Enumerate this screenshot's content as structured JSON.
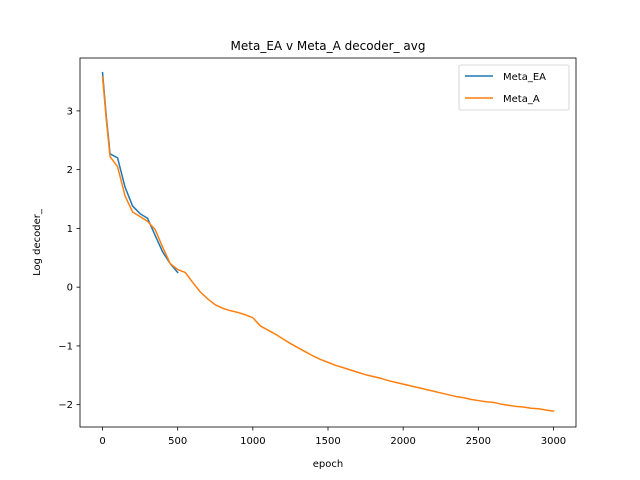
{
  "chart_data": {
    "type": "line",
    "title": "Meta_EA v Meta_A decoder_ avg",
    "xlabel": "epoch",
    "ylabel": "Log decoder_",
    "xlim": [
      -150,
      3150
    ],
    "ylim": [
      -2.38,
      3.9
    ],
    "xticks": [
      0,
      500,
      1000,
      1500,
      2000,
      2500,
      3000
    ],
    "yticks": [
      -2,
      -1,
      0,
      1,
      2,
      3
    ],
    "ytick_labels": [
      "−2",
      "−1",
      "0",
      "1",
      "2",
      "3"
    ],
    "grid": false,
    "legend": "top-right",
    "colors": {
      "Meta_EA": "#1f77b4",
      "Meta_A": "#ff7f0e"
    },
    "series": [
      {
        "name": "Meta_EA",
        "color": "#1f77b4",
        "x": [
          0,
          25,
          50,
          100,
          150,
          200,
          250,
          300,
          350,
          400,
          450,
          500
        ],
        "y": [
          3.65,
          2.9,
          2.27,
          2.2,
          1.7,
          1.38,
          1.25,
          1.17,
          0.88,
          0.6,
          0.4,
          0.25
        ]
      },
      {
        "name": "Meta_A",
        "color": "#ff7f0e",
        "x": [
          0,
          25,
          50,
          100,
          150,
          200,
          250,
          300,
          350,
          400,
          450,
          500,
          550,
          600,
          650,
          700,
          750,
          800,
          850,
          900,
          950,
          1000,
          1050,
          1100,
          1150,
          1200,
          1250,
          1300,
          1350,
          1400,
          1450,
          1500,
          1550,
          1600,
          1650,
          1700,
          1750,
          1800,
          1850,
          1900,
          1950,
          2000,
          2050,
          2100,
          2150,
          2200,
          2250,
          2300,
          2350,
          2400,
          2450,
          2500,
          2550,
          2600,
          2650,
          2700,
          2750,
          2800,
          2850,
          2900,
          2950,
          3000
        ],
        "y": [
          3.58,
          2.85,
          2.22,
          2.05,
          1.55,
          1.28,
          1.2,
          1.12,
          0.98,
          0.68,
          0.4,
          0.3,
          0.25,
          0.08,
          -0.08,
          -0.2,
          -0.3,
          -0.36,
          -0.4,
          -0.43,
          -0.47,
          -0.52,
          -0.66,
          -0.73,
          -0.8,
          -0.88,
          -0.96,
          -1.03,
          -1.1,
          -1.17,
          -1.23,
          -1.28,
          -1.33,
          -1.37,
          -1.41,
          -1.45,
          -1.49,
          -1.52,
          -1.55,
          -1.59,
          -1.62,
          -1.65,
          -1.68,
          -1.71,
          -1.74,
          -1.77,
          -1.8,
          -1.83,
          -1.86,
          -1.88,
          -1.91,
          -1.93,
          -1.95,
          -1.96,
          -1.99,
          -2.01,
          -2.03,
          -2.04,
          -2.06,
          -2.07,
          -2.09,
          -2.11
        ]
      }
    ]
  }
}
